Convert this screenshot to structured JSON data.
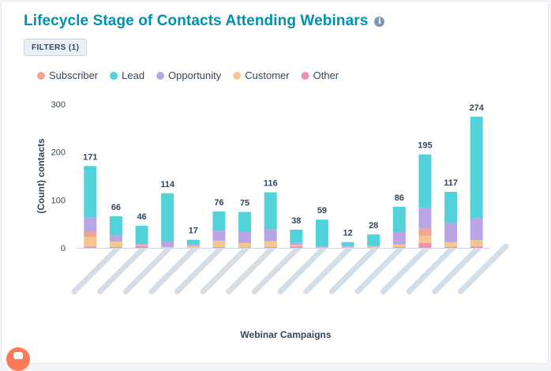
{
  "header": {
    "title": "Lifecycle Stage of Contacts Attending Webinars",
    "info_icon": "info-icon",
    "filters_label": "FILTERS (1)"
  },
  "chart_data": {
    "type": "bar",
    "stacked": true,
    "xlabel": "Webinar Campaigns",
    "ylabel": "(Count) contacts",
    "ylim": [
      0,
      300
    ],
    "yticks": [
      0,
      100,
      200,
      300
    ],
    "grid": false,
    "legend_position": "top-left",
    "categories_visible": false,
    "series": [
      {
        "name": "Subscriber",
        "color": "#f2a68f",
        "values": [
          10,
          0,
          0,
          0,
          0,
          0,
          0,
          0,
          0,
          0,
          0,
          0,
          0,
          15,
          0,
          0
        ]
      },
      {
        "name": "Lead",
        "color": "#51d3d9",
        "values": [
          108,
          40,
          37,
          100,
          10,
          40,
          42,
          77,
          27,
          56,
          8,
          23,
          53,
          112,
          65,
          212
        ]
      },
      {
        "name": "Opportunity",
        "color": "#b9a5e6",
        "values": [
          30,
          13,
          3,
          12,
          3,
          21,
          23,
          25,
          5,
          2,
          2,
          2,
          26,
          43,
          40,
          46
        ]
      },
      {
        "name": "Customer",
        "color": "#f5c78e",
        "values": [
          20,
          11,
          2,
          2,
          4,
          13,
          9,
          12,
          3,
          1,
          2,
          3,
          5,
          15,
          10,
          13
        ]
      },
      {
        "name": "Other",
        "color": "#ea90b1",
        "values": [
          3,
          2,
          4,
          0,
          0,
          2,
          1,
          2,
          3,
          0,
          0,
          0,
          2,
          10,
          2,
          3
        ]
      }
    ],
    "totals": [
      171,
      66,
      46,
      114,
      17,
      76,
      75,
      116,
      38,
      59,
      12,
      28,
      86,
      195,
      117,
      274
    ]
  }
}
